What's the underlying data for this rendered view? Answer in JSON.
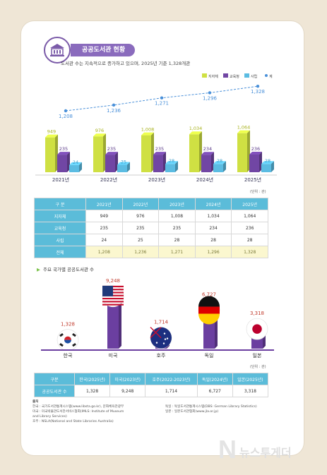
{
  "header": {
    "title": "공공도서관 현황",
    "subtitle": "도서관 수는 지속적으로 증가하고 있으며, 2025년 기준 1,328개관"
  },
  "chart_data": [
    {
      "type": "bar",
      "categories": [
        "2021년",
        "2022년",
        "2023년",
        "2024년",
        "2025년"
      ],
      "series": [
        {
          "name": "지자체",
          "values": [
            949,
            976,
            1008,
            1034,
            1064
          ],
          "color": "#cfe043"
        },
        {
          "name": "교육청",
          "values": [
            235,
            235,
            235,
            234,
            236
          ],
          "color": "#7146a4"
        },
        {
          "name": "사립",
          "values": [
            24,
            25,
            28,
            28,
            28
          ],
          "color": "#5bbce2"
        }
      ],
      "line": {
        "name": "계",
        "values": [
          1208,
          1236,
          1271,
          1296,
          1328
        ],
        "color": "#4a90d9"
      },
      "unit": "(단위 : 관)"
    },
    {
      "type": "bar",
      "title": "주요 국가별 공공도서관 수",
      "categories": [
        "한국",
        "미국",
        "호주",
        "독일",
        "일본"
      ],
      "values": [
        1328,
        9248,
        1714,
        6727,
        3318
      ],
      "value_labels": [
        "1,328",
        "9,248",
        "1,714",
        "6,727",
        "3,318"
      ],
      "flags": [
        "korea-flag",
        "usa-flag",
        "australia-flag",
        "germany-flag",
        "japan-flag"
      ],
      "color": "#6b3fa0",
      "unit": "(단위 : 관)"
    }
  ],
  "table1": {
    "header": [
      "구 분",
      "2021년",
      "2022년",
      "2023년",
      "2024년",
      "2025년"
    ],
    "rows": [
      [
        "지자체",
        "949",
        "976",
        "1,008",
        "1,034",
        "1,064"
      ],
      [
        "교육청",
        "235",
        "235",
        "235",
        "234",
        "236"
      ],
      [
        "사립",
        "24",
        "25",
        "28",
        "28",
        "28"
      ]
    ],
    "total": [
      "전체",
      "1,208",
      "1,236",
      "1,271",
      "1,296",
      "1,328"
    ]
  },
  "table2": {
    "header": [
      "구분",
      "한국(2025년)",
      "미국(2023년)",
      "호주(2022-2023년)",
      "독일(2024년)",
      "일본(2025년)"
    ],
    "row": [
      "공공도서관 수",
      "1,328",
      "9,248",
      "1,714",
      "6,727",
      "3,318"
    ]
  },
  "sources": {
    "label": "출처",
    "left": [
      "한국 : 국가도서관통계시스템(www.libsta.go.kr), 문화체육관광부",
      "미국 : 미국박물관도서관서비스협회(IMLS: Institute of Museum",
      "and Library Services)",
      "호주 : NSLA(National and State Libraries Australia)"
    ],
    "right": [
      "독일 : 독일도서관통계시스템(DBS: German Library Statistics)",
      "일본 : 일본도서관협회(www.jla.or.jp)"
    ]
  },
  "watermark": {
    "text": "뉴스투게더"
  }
}
